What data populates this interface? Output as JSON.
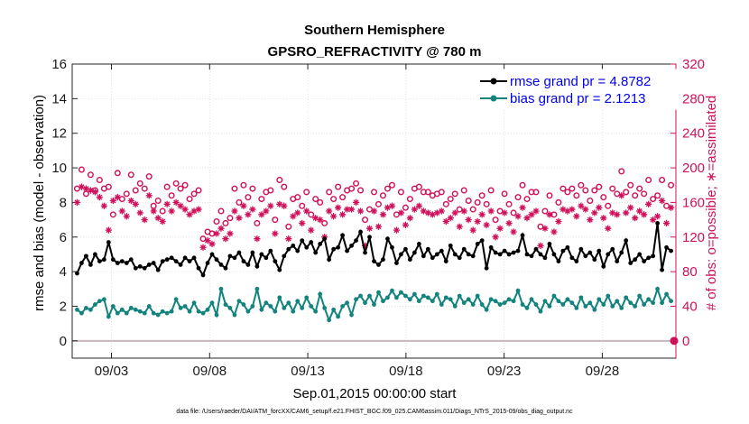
{
  "chart_data": {
    "type": "line",
    "title_line1": "Southern Hemisphere",
    "title_line2": "GPSRO_REFRACTIVITY @ 780 m",
    "xlabel": "Sep.01,2015 00:00:00 start",
    "ylabel_left": "rmse and bias (model - observation)",
    "ylabel_right": "# of obs: o=possible; ∗=assimilated",
    "xlim": [
      0.0,
      30.75
    ],
    "ylim_left": [
      -1,
      16
    ],
    "ylim_right": [
      -20,
      320
    ],
    "x_ticks": [
      {
        "value": 2,
        "label": "09/03"
      },
      {
        "value": 7,
        "label": "09/08"
      },
      {
        "value": 12,
        "label": "09/13"
      },
      {
        "value": 17,
        "label": "09/18"
      },
      {
        "value": 22,
        "label": "09/23"
      },
      {
        "value": 27,
        "label": "09/28"
      }
    ],
    "y_ticks_left": [
      0,
      2,
      4,
      6,
      8,
      10,
      12,
      14,
      16
    ],
    "y_ticks_right": [
      0,
      40,
      80,
      120,
      160,
      200,
      240,
      280,
      320
    ],
    "grid": true,
    "legend_position": "top-right",
    "colors": {
      "rmse": "#000000",
      "bias": "#12847d",
      "obs": "#d0105a",
      "zero_line": "#c8b4bc",
      "legend_text": "#0000ee"
    },
    "footnote": "data file: /Users/raeder/DAI/ATM_forcXX/CAM6_setup/f.e21.FHIST_BGC.f09_025.CAM6assim.011/Diags_NTrS_2015-09/obs_diag_output.nc",
    "series": [
      {
        "name": "rmse",
        "legend": "rmse grand pr = 4.8782",
        "y_axis": "left",
        "values": [
          3.9,
          4.5,
          4.9,
          4.4,
          5.0,
          4.6,
          4.7,
          5.7,
          4.7,
          4.5,
          4.6,
          4.5,
          4.7,
          4.2,
          4.3,
          4.2,
          4.4,
          4.5,
          4.1,
          4.6,
          4.7,
          4.8,
          4.6,
          4.4,
          4.8,
          4.6,
          4.8,
          4.2,
          3.8,
          4.5,
          5.0,
          4.7,
          4.4,
          4.2,
          4.9,
          4.8,
          5.1,
          4.6,
          4.4,
          5.1,
          4.3,
          5.0,
          4.8,
          5.2,
          4.6,
          4.1,
          4.9,
          5.3,
          5.5,
          5.2,
          5.8,
          5.4,
          5.7,
          5.1,
          5.6,
          5.9,
          4.7,
          5.3,
          5.4,
          6.1,
          5.2,
          5.5,
          5.8,
          6.3,
          5.1,
          6.0,
          4.6,
          4.4,
          4.7,
          5.9,
          5.4,
          4.5,
          5.0,
          5.3,
          4.7,
          5.1,
          5.6,
          4.9,
          5.3,
          4.8,
          5.0,
          5.2,
          4.6,
          5.5,
          5.0,
          4.8,
          5.3,
          5.0,
          4.9,
          5.6,
          5.8,
          4.2,
          5.4,
          5.1,
          5.0,
          5.2,
          5.0,
          5.1,
          5.2,
          6.1,
          5.0,
          4.9,
          5.3,
          5.0,
          4.8,
          5.6,
          5.0,
          4.6,
          5.2,
          5.4,
          4.8,
          4.6,
          5.3,
          4.9,
          5.1,
          4.7,
          5.2,
          4.3,
          5.0,
          5.3,
          4.6,
          5.1,
          5.8,
          4.5,
          4.7,
          5.0,
          4.6,
          4.8,
          4.9,
          6.8,
          4.1,
          5.4,
          5.2
        ]
      },
      {
        "name": "bias",
        "legend": "bias grand pr = 2.1213",
        "y_axis": "left",
        "values": [
          1.8,
          1.6,
          1.9,
          1.8,
          2.1,
          2.3,
          2.4,
          1.4,
          2.0,
          1.6,
          1.8,
          1.6,
          1.9,
          1.8,
          1.7,
          1.6,
          2.0,
          1.6,
          1.5,
          1.7,
          1.6,
          1.7,
          2.4,
          1.9,
          2.0,
          1.7,
          2.2,
          1.7,
          1.6,
          1.8,
          2.2,
          1.5,
          3.0,
          2.1,
          1.9,
          1.5,
          2.3,
          2.1,
          1.7,
          2.0,
          3.0,
          1.8,
          2.2,
          2.0,
          1.7,
          2.5,
          1.9,
          2.2,
          1.7,
          2.3,
          1.9,
          2.5,
          2.0,
          1.7,
          2.7,
          1.9,
          1.2,
          1.8,
          1.4,
          2.0,
          2.2,
          1.5,
          2.4,
          2.6,
          2.2,
          2.6,
          2.1,
          2.8,
          2.3,
          2.5,
          2.9,
          2.5,
          2.8,
          2.6,
          2.4,
          2.7,
          2.3,
          2.6,
          2.5,
          2.3,
          2.7,
          2.1,
          2.5,
          2.4,
          2.0,
          2.6,
          2.2,
          2.4,
          2.1,
          2.6,
          2.1,
          1.8,
          2.4,
          2.3,
          2.1,
          2.2,
          2.4,
          2.3,
          2.9,
          2.1,
          1.9,
          2.4,
          2.1,
          1.7,
          2.3,
          2.0,
          2.6,
          2.3,
          2.1,
          2.4,
          2.2,
          1.9,
          2.5,
          2.0,
          2.2,
          1.8,
          2.4,
          2.1,
          2.6,
          2.0,
          2.3,
          1.9,
          2.5,
          2.2,
          2.0,
          2.6,
          2.1,
          2.4,
          2.2,
          3.0,
          2.2,
          2.7,
          2.3
        ]
      },
      {
        "name": "possible",
        "legend": "",
        "y_axis": "right",
        "marker": "circle",
        "values": [
          176,
          198,
          170,
          192,
          174,
          186,
          176,
          178,
          146,
          194,
          164,
          170,
          192,
          174,
          182,
          176,
          190,
          156,
          162,
          150,
          178,
          168,
          182,
          176,
          180,
          164,
          170,
          174,
          118,
          126,
          124,
          138,
          150,
          136,
          142,
          176,
          160,
          180,
          166,
          176,
          136,
          164,
          172,
          174,
          140,
          186,
          178,
          132,
          164,
          166,
          156,
          172,
          146,
          164,
          160,
          136,
          172,
          164,
          178,
          166,
          174,
          176,
          182,
          174,
          140,
          152,
          172,
          158,
          168,
          176,
          180,
          146,
          172,
          154,
          164,
          176,
          178,
          172,
          172,
          168,
          170,
          172,
          158,
          164,
          170,
          152,
          174,
          162,
          152,
          160,
          168,
          158,
          174,
          140,
          150,
          170,
          158,
          148,
          166,
          180,
          164,
          172,
          172,
          132,
          150,
          168,
          146,
          160,
          176,
          172,
          176,
          168,
          180,
          174,
          162,
          174,
          178,
          166,
          156,
          176,
          170,
          196,
          172,
          180,
          168,
          176,
          170,
          186,
          164,
          168,
          186,
          156,
          180
        ]
      },
      {
        "name": "assimilated",
        "legend": "",
        "y_axis": "right",
        "marker": "star",
        "values": [
          160,
          178,
          176,
          174,
          172,
          166,
          156,
          128,
          162,
          166,
          150,
          144,
          162,
          158,
          148,
          140,
          168,
          150,
          142,
          138,
          158,
          150,
          160,
          156,
          152,
          146,
          150,
          152,
          108,
          116,
          112,
          124,
          130,
          118,
          124,
          150,
          142,
          156,
          146,
          152,
          118,
          146,
          150,
          156,
          124,
          158,
          156,
          118,
          144,
          148,
          136,
          150,
          128,
          142,
          140,
          120,
          150,
          144,
          154,
          146,
          152,
          152,
          160,
          150,
          110,
          130,
          150,
          132,
          146,
          154,
          156,
          128,
          148,
          134,
          142,
          152,
          156,
          150,
          148,
          146,
          148,
          150,
          138,
          142,
          148,
          132,
          150,
          140,
          128,
          138,
          146,
          134,
          150,
          120,
          130,
          148,
          136,
          126,
          144,
          154,
          142,
          146,
          150,
          110,
          130,
          146,
          126,
          138,
          152,
          150,
          152,
          144,
          156,
          152,
          140,
          148,
          154,
          142,
          130,
          148,
          146,
          168,
          148,
          154,
          142,
          150,
          146,
          158,
          140,
          144,
          162,
          136,
          154
        ]
      }
    ]
  }
}
